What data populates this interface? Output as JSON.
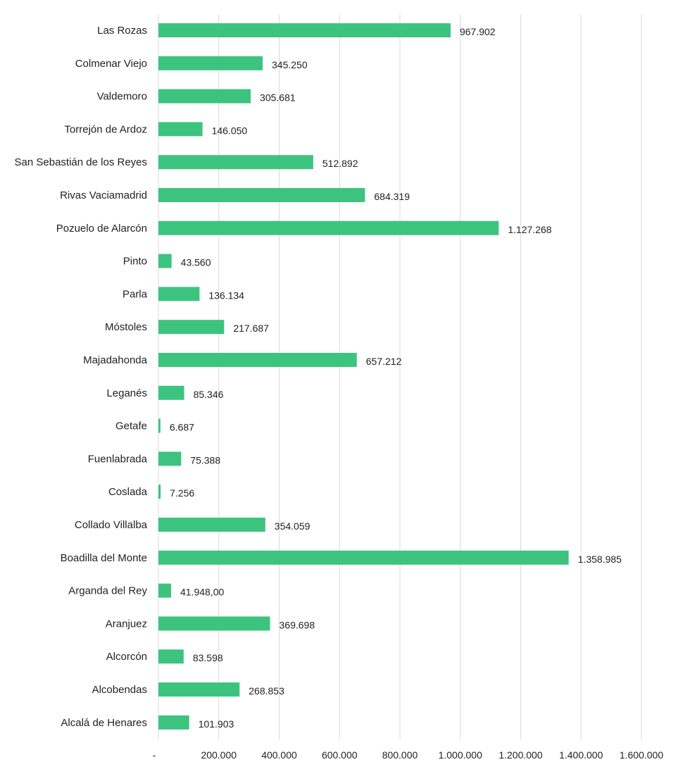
{
  "chart_data": {
    "type": "bar",
    "orientation": "horizontal",
    "title": "",
    "xlabel": "",
    "ylabel": "",
    "bar_color": "#3cc47f",
    "grid_color": "#d9d9d9",
    "grid": true,
    "legend": "none",
    "xlim": [
      0,
      1600000
    ],
    "x_ticks": [
      {
        "value": 0,
        "label": "-"
      },
      {
        "value": 200000,
        "label": "200.000"
      },
      {
        "value": 400000,
        "label": "400.000"
      },
      {
        "value": 600000,
        "label": "600.000"
      },
      {
        "value": 800000,
        "label": "800.000"
      },
      {
        "value": 1000000,
        "label": "1.000.000"
      },
      {
        "value": 1200000,
        "label": "1.200.000"
      },
      {
        "value": 1400000,
        "label": "1.400.000"
      },
      {
        "value": 1600000,
        "label": "1.600.000"
      }
    ],
    "categories": [
      "Las Rozas",
      "Colmenar Viejo",
      "Valdemoro",
      "Torrejón de Ardoz",
      "San Sebastián de los Reyes",
      "Rivas Vaciamadrid",
      "Pozuelo de Alarcón",
      "Pinto",
      "Parla",
      "Móstoles",
      "Majadahonda",
      "Leganés",
      "Getafe",
      "Fuenlabrada",
      "Coslada",
      "Collado Villalba",
      "Boadilla del Monte",
      "Arganda del Rey",
      "Aranjuez",
      "Alcorcón",
      "Alcobendas",
      "Alcalá de Henares"
    ],
    "values": [
      967902,
      345250,
      305681,
      146050,
      512892,
      684319,
      1127268,
      43560,
      136134,
      217687,
      657212,
      85346,
      6687,
      75388,
      7256,
      354059,
      1358985,
      41948,
      369698,
      83598,
      268853,
      101903
    ],
    "value_labels": [
      "967.902",
      "345.250",
      "305.681",
      "146.050",
      "512.892",
      "684.319",
      "1.127.268",
      "43.560",
      "136.134",
      "217.687",
      "657.212",
      "85.346",
      "6.687",
      "75.388",
      "7.256",
      "354.059",
      "1.358.985",
      "41.948,00",
      "369.698",
      "83.598",
      "268.853",
      "101.903"
    ]
  }
}
